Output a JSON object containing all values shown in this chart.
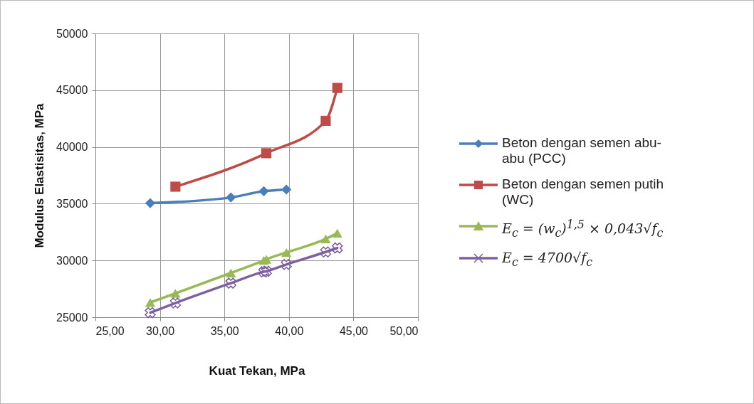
{
  "chart_data": {
    "type": "line",
    "xlabel": "Kuat Tekan, MPa",
    "ylabel": "Modulus Elastisitas, MPa",
    "xlim": [
      25,
      50
    ],
    "xticks": [
      {
        "value": 25,
        "label": "25,00"
      },
      {
        "value": 30,
        "label": "30,00"
      },
      {
        "value": 35,
        "label": "35,00"
      },
      {
        "value": 40,
        "label": "40,00"
      },
      {
        "value": 45,
        "label": "45,00"
      },
      {
        "value": 50,
        "label": "50,00"
      }
    ],
    "ylim": [
      25000,
      50000
    ],
    "yticks": [
      25000,
      30000,
      35000,
      40000,
      45000,
      50000
    ],
    "grid": true,
    "legend": "right",
    "series": [
      {
        "name": "Beton dengan semen abu-abu (PCC)",
        "color": "#4a7ebb",
        "marker": "diamond",
        "x": [
          29.25,
          35.5,
          38.05,
          39.8
        ],
        "values": [
          35050,
          35550,
          36100,
          36250
        ]
      },
      {
        "name": "Beton dengan semen putih (WC)",
        "color": "#be4b48",
        "marker": "square",
        "x": [
          31.2,
          38.25,
          42.85,
          43.75
        ],
        "values": [
          36500,
          39450,
          42300,
          45200
        ]
      },
      {
        "name": "E$_{c}$ = (w$_{c}$)$^{1,5}$ × 0,043√f$_{c}$",
        "color": "#98b954",
        "marker": "triangle",
        "x": [
          29.25,
          31.2,
          35.5,
          38.05,
          38.25,
          39.8,
          42.85,
          43.75
        ],
        "values": [
          26300,
          27100,
          28900,
          30000,
          30100,
          30700,
          31900,
          32400
        ]
      },
      {
        "name": "E$_{c}$ = 4700√f$_{c}$",
        "color": "#7d60a0",
        "marker": "cross",
        "x": [
          29.25,
          31.2,
          35.5,
          38.05,
          38.25,
          39.8,
          42.85,
          43.75
        ],
        "values": [
          25400,
          26250,
          28000,
          29000,
          29050,
          29650,
          30750,
          31100
        ]
      }
    ]
  }
}
